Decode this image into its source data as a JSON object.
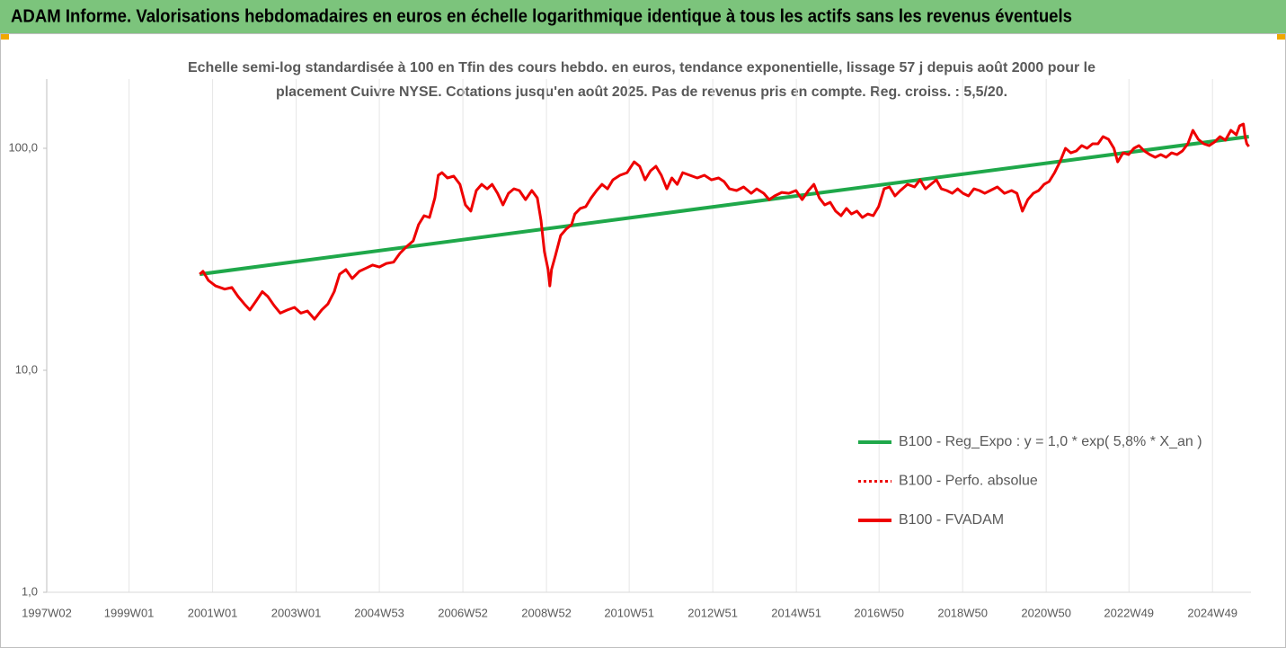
{
  "header": {
    "title": "ADAM Informe. Valorisations hebdomadaires en euros en échelle logarithmique identique à tous les actifs sans les revenus éventuels"
  },
  "chart_data": {
    "type": "line",
    "title": [
      "Echelle semi-log standardisée à 100 en Tfin des cours hebdo. en euros, tendance exponentielle, lissage 57 j depuis août 2000 pour le",
      "placement Cuivre NYSE.  Cotations jusqu'en août 2025.  Pas de revenus pris en compte. Reg. croiss. : 5,5/20."
    ],
    "log_scale": true,
    "ylim": [
      1,
      205
    ],
    "yticks": [
      {
        "value": 1,
        "label": "1,0"
      },
      {
        "value": 10,
        "label": "10,0"
      },
      {
        "value": 100,
        "label": "100,0"
      }
    ],
    "xlim": [
      1997.03,
      2025.85
    ],
    "xticks": [
      {
        "value": 1997.03,
        "label": "1997W02"
      },
      {
        "value": 1999.0,
        "label": "1999W01"
      },
      {
        "value": 2001.0,
        "label": "2001W01"
      },
      {
        "value": 2003.0,
        "label": "2003W01"
      },
      {
        "value": 2004.99,
        "label": "2004W53"
      },
      {
        "value": 2006.99,
        "label": "2006W52"
      },
      {
        "value": 2008.99,
        "label": "2008W52"
      },
      {
        "value": 2010.97,
        "label": "2010W51"
      },
      {
        "value": 2012.97,
        "label": "2012W51"
      },
      {
        "value": 2014.97,
        "label": "2014W51"
      },
      {
        "value": 2016.95,
        "label": "2016W50"
      },
      {
        "value": 2018.95,
        "label": "2018W50"
      },
      {
        "value": 2020.95,
        "label": "2020W50"
      },
      {
        "value": 2022.93,
        "label": "2022W49"
      },
      {
        "value": 2024.93,
        "label": "2024W49"
      }
    ],
    "grid": true,
    "series": [
      {
        "name": "B100 - Reg_Expo : y = 1,0 * exp( 5,8% *  X_an )",
        "color": "#1fa84a",
        "x": [
          2000.69,
          2025.8
        ],
        "values": [
          27.1,
          112.9
        ]
      },
      {
        "name": "B100 - Perfo. absolue",
        "color": "#ee0000",
        "dash": "dotted"
      },
      {
        "name": "B100 - FVADAM",
        "color": "#ee0000",
        "x": [
          2000.69,
          2000.77,
          2000.9,
          2001.07,
          2001.29,
          2001.46,
          2001.61,
          2001.76,
          2001.89,
          2002.04,
          2002.19,
          2002.32,
          2002.47,
          2002.62,
          2002.79,
          2002.96,
          2003.11,
          2003.27,
          2003.44,
          2003.61,
          2003.76,
          2003.91,
          2004.04,
          2004.19,
          2004.34,
          2004.51,
          2004.68,
          2004.83,
          2004.99,
          2005.16,
          2005.33,
          2005.48,
          2005.63,
          2005.8,
          2005.93,
          2006.06,
          2006.19,
          2006.32,
          2006.4,
          2006.49,
          2006.62,
          2006.77,
          2006.92,
          2007.05,
          2007.18,
          2007.31,
          2007.44,
          2007.57,
          2007.69,
          2007.82,
          2007.95,
          2008.08,
          2008.21,
          2008.34,
          2008.49,
          2008.64,
          2008.77,
          2008.86,
          2008.94,
          2009.03,
          2009.07,
          2009.11,
          2009.2,
          2009.33,
          2009.46,
          2009.59,
          2009.67,
          2009.8,
          2009.93,
          2010.06,
          2010.19,
          2010.32,
          2010.45,
          2010.58,
          2010.75,
          2010.92,
          2011.09,
          2011.22,
          2011.35,
          2011.48,
          2011.61,
          2011.74,
          2011.87,
          2011.99,
          2012.12,
          2012.25,
          2012.42,
          2012.6,
          2012.77,
          2012.94,
          2013.11,
          2013.24,
          2013.37,
          2013.54,
          2013.71,
          2013.89,
          2014.02,
          2014.19,
          2014.32,
          2014.45,
          2014.62,
          2014.79,
          2014.96,
          2015.11,
          2015.26,
          2015.39,
          2015.52,
          2015.65,
          2015.78,
          2015.91,
          2016.04,
          2016.17,
          2016.29,
          2016.42,
          2016.55,
          2016.68,
          2016.81,
          2016.94,
          2017.07,
          2017.2,
          2017.33,
          2017.46,
          2017.63,
          2017.8,
          2017.93,
          2018.06,
          2018.19,
          2018.32,
          2018.44,
          2018.57,
          2018.7,
          2018.83,
          2018.96,
          2019.09,
          2019.22,
          2019.35,
          2019.48,
          2019.61,
          2019.78,
          2019.95,
          2020.12,
          2020.25,
          2020.38,
          2020.51,
          2020.64,
          2020.77,
          2020.9,
          2021.02,
          2021.15,
          2021.28,
          2021.41,
          2021.54,
          2021.67,
          2021.8,
          2021.93,
          2022.06,
          2022.19,
          2022.31,
          2022.44,
          2022.57,
          2022.66,
          2022.79,
          2022.92,
          2023.05,
          2023.17,
          2023.3,
          2023.43,
          2023.56,
          2023.69,
          2023.82,
          2023.95,
          2024.08,
          2024.21,
          2024.34,
          2024.46,
          2024.59,
          2024.72,
          2024.85,
          2024.98,
          2025.11,
          2025.24,
          2025.37,
          2025.5,
          2025.58,
          2025.67,
          2025.71,
          2025.75,
          2025.8
        ],
        "values": [
          27.1,
          27.9,
          25.4,
          24.0,
          23.2,
          23.6,
          21.5,
          19.9,
          18.7,
          20.5,
          22.6,
          21.5,
          19.6,
          18.1,
          18.7,
          19.2,
          18.1,
          18.5,
          17.0,
          18.7,
          19.9,
          22.6,
          27.1,
          28.4,
          25.9,
          27.9,
          28.9,
          29.8,
          29.2,
          30.3,
          30.7,
          33.6,
          35.9,
          38.3,
          45.3,
          49.7,
          48.8,
          59.8,
          75.6,
          77.7,
          73.5,
          74.9,
          68.8,
          55.6,
          52.1,
          64.5,
          68.8,
          65.7,
          68.8,
          62.7,
          55.6,
          62.7,
          65.7,
          64.5,
          58.7,
          64.5,
          59.8,
          47.4,
          34.2,
          28.4,
          24.0,
          28.4,
          32.7,
          40.5,
          43.2,
          45.3,
          50.6,
          53.6,
          54.6,
          59.8,
          64.5,
          68.8,
          65.7,
          72.1,
          75.6,
          77.7,
          86.9,
          83.0,
          72.1,
          79.2,
          83.0,
          75.6,
          65.7,
          73.5,
          68.8,
          77.7,
          75.6,
          73.5,
          75.6,
          72.1,
          73.5,
          70.8,
          65.7,
          64.5,
          67.0,
          62.7,
          65.7,
          62.7,
          58.7,
          61.0,
          63.3,
          62.7,
          64.5,
          58.7,
          64.5,
          68.8,
          59.8,
          55.6,
          57.1,
          52.1,
          49.7,
          53.6,
          50.6,
          52.1,
          48.8,
          50.6,
          49.7,
          54.6,
          65.7,
          67.0,
          61.0,
          64.5,
          68.8,
          67.0,
          72.1,
          65.7,
          68.8,
          72.1,
          65.7,
          64.5,
          62.7,
          65.7,
          62.7,
          61.0,
          65.7,
          64.5,
          62.7,
          64.5,
          67.0,
          62.7,
          64.5,
          62.7,
          52.1,
          58.7,
          62.7,
          64.5,
          68.8,
          70.8,
          77.7,
          86.9,
          100,
          95.4,
          97.2,
          102.8,
          100,
          104.8,
          104.8,
          112.9,
          109.8,
          100,
          86.9,
          95.4,
          93.7,
          100,
          102.8,
          97.2,
          93.7,
          91.1,
          93.7,
          91.1,
          95.4,
          93.7,
          97.2,
          104.8,
          120.5,
          109.8,
          104.8,
          102.8,
          106.7,
          112.9,
          108.8,
          120.5,
          115.0,
          126.2,
          128.6,
          112.9,
          104.8,
          101.9
        ]
      }
    ]
  }
}
